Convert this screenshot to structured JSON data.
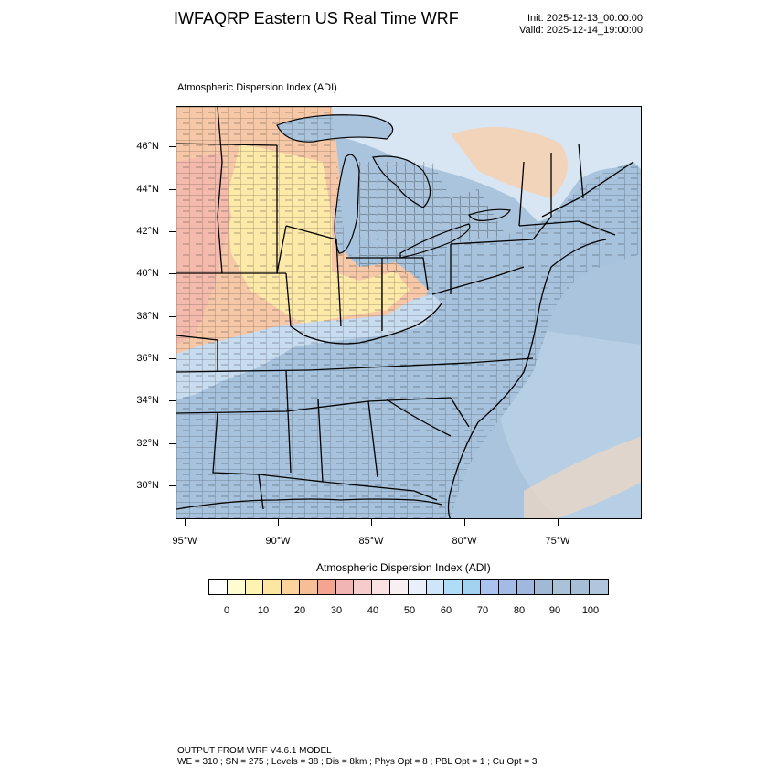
{
  "header": {
    "title": "IWFAQRP Eastern US Real Time WRF",
    "init": "Init: 2025-12-13_00:00:00",
    "valid": "Valid: 2025-12-14_19:00:00"
  },
  "plot": {
    "title": "Atmospheric Dispersion Index   (ADI)",
    "lat_labels": [
      "46°N",
      "44°N",
      "42°N",
      "40°N",
      "38°N",
      "36°N",
      "34°N",
      "32°N",
      "30°N"
    ],
    "lon_labels": [
      "95°W",
      "90°W",
      "85°W",
      "80°W",
      "75°W"
    ],
    "colors": {
      "ocean": "#a9c4dc",
      "land_low": "#a6c2dc",
      "warm": "#f6c8a8",
      "yellow": "#fde9a8",
      "light": "#c8dcf0",
      "border": "#000000"
    }
  },
  "colorbar": {
    "title": "Atmospheric Dispersion Index  (ADI)",
    "colors": [
      "#ffffff",
      "#fffcd2",
      "#fef3b0",
      "#fde7a0",
      "#fcd39b",
      "#f7be97",
      "#f4a48f",
      "#f3b4b4",
      "#f6cbcb",
      "#fae2e2",
      "#f8eff2",
      "#e8f1fb",
      "#cde6f8",
      "#afdcf6",
      "#a2d2f0",
      "#aac4ef",
      "#a4bbe6",
      "#a0b8de",
      "#a0b9d5",
      "#a9c2d8",
      "#a5bfd8",
      "#b0c6dc"
    ],
    "labels": [
      "0",
      "10",
      "20",
      "30",
      "40",
      "50",
      "60",
      "70",
      "80",
      "90",
      "100"
    ]
  },
  "footer": {
    "line1": "OUTPUT FROM WRF V4.6.1 MODEL",
    "line2": "WE = 310 ; SN = 275 ; Levels = 38 ; Dis = 8km ; Phys Opt = 8 ; PBL Opt = 1 ; Cu Opt = 3"
  }
}
